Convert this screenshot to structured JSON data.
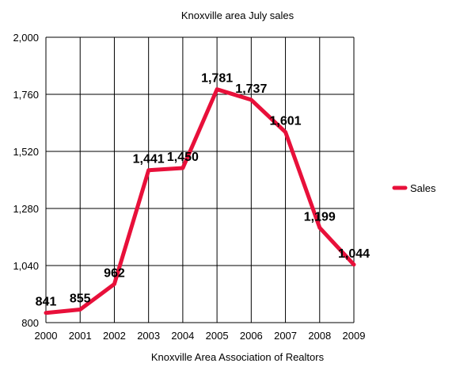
{
  "chart_data": {
    "type": "line",
    "title": "Knoxville area July sales",
    "xlabel": "Knoxville Area Association of Realtors",
    "ylabel": "",
    "categories": [
      "2000",
      "2001",
      "2002",
      "2003",
      "2004",
      "2005",
      "2006",
      "2007",
      "2008",
      "2009"
    ],
    "series": [
      {
        "name": "Sales",
        "values": [
          841,
          855,
          962,
          1441,
          1450,
          1781,
          1737,
          1601,
          1199,
          1044
        ],
        "labels": [
          "841",
          "855",
          "962",
          "1,441",
          "1,450",
          "1,781",
          "1,737",
          "1,601",
          "1,199",
          "1,044"
        ],
        "color": "#e8103a"
      }
    ],
    "ylim": [
      800,
      2000
    ],
    "yticks": [
      800,
      1040,
      1280,
      1520,
      1760,
      2000
    ],
    "ytick_labels": [
      "800",
      "1,040",
      "1,280",
      "1,520",
      "1,760",
      "2,000"
    ],
    "grid": true,
    "legend": "right"
  }
}
